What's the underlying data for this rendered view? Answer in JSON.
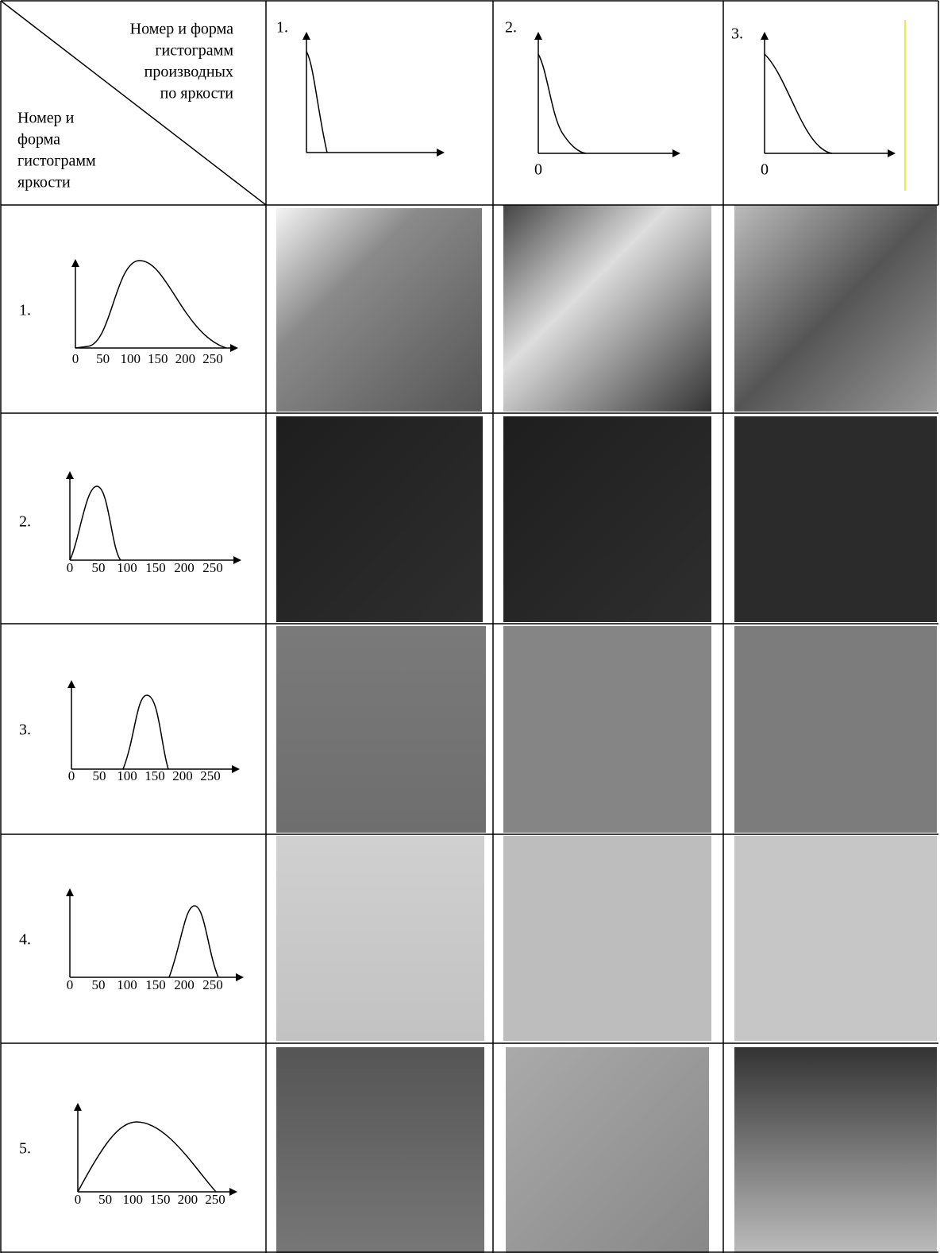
{
  "header": {
    "corner_top": [
      "Номер и форма",
      "гистограмм",
      "производных",
      "по яркости"
    ],
    "corner_bottom": [
      "Номер и",
      "форма",
      "гистограмм",
      "яркости"
    ]
  },
  "columns": [
    {
      "label": "1."
    },
    {
      "label": "2.",
      "zero": "0"
    },
    {
      "label": "3.",
      "zero": "0"
    }
  ],
  "rows": [
    {
      "label": "1.",
      "axis_labels": [
        "0",
        "50",
        "100",
        "150",
        "200",
        "250"
      ]
    },
    {
      "label": "2.",
      "axis_labels": [
        "0",
        "50",
        "100",
        "150",
        "200",
        "250"
      ]
    },
    {
      "label": "3.",
      "axis_labels": [
        "0",
        "50",
        "100",
        "150",
        "200",
        "250"
      ]
    },
    {
      "label": "4.",
      "axis_labels": [
        "0",
        "50",
        "100",
        "150",
        "200",
        "250"
      ]
    },
    {
      "label": "5.",
      "axis_labels": [
        "0",
        "50",
        "100",
        "150",
        "200",
        "250"
      ]
    }
  ]
}
